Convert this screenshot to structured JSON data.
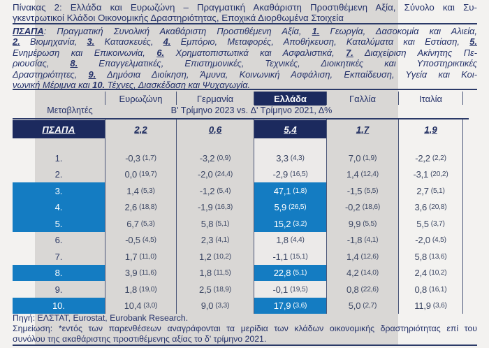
{
  "colors": {
    "page_bg": "#f3f2f0",
    "panel_gray": "#d9d7d5",
    "greece_column_light": "#eceae9",
    "navy": "#1c2a5e",
    "highlight_blue": "#147cc2",
    "rule_line": "#2b3a68",
    "text_navy": "#243169",
    "value_text": "#3b4663",
    "white": "#ffffff"
  },
  "title": {
    "lines": [
      "Πίνακας 2: Ελλάδα και Ευρωζώνη – Πραγματική Ακαθάριστη Προστιθέμενη Αξία, Σύνολο και Συ-",
      "γκεντρωτικοί Κλάδοι Οικονομικής Δραστηριότητας, Εποχικά Διορθωμένα Στοιχεία"
    ]
  },
  "description": {
    "lines": [
      [
        {
          "t": "ΠΣΑΠΑ",
          "m": true
        },
        {
          "t": ": Πραγματική Συνολική Ακαθάριστη Προστιθέμενη Αξία, ",
          "m": false
        },
        {
          "t": "1.",
          "m": true
        },
        {
          "t": " Γεωργία, Δασοκομία και Αλιεία,",
          "m": false
        }
      ],
      [
        {
          "t": "2.",
          "m": true
        },
        {
          "t": " Βιομηχανία, ",
          "m": false
        },
        {
          "t": "3.",
          "m": true
        },
        {
          "t": " Κατασκευές, ",
          "m": false
        },
        {
          "t": "4.",
          "m": true
        },
        {
          "t": " Εμπόριο, Μεταφορές, Αποθήκευση, Καταλύματα και Εστίαση, ",
          "m": false
        },
        {
          "t": "5.",
          "m": true
        }
      ],
      [
        {
          "t": "Ενημέρωση και Επικοινωνία, ",
          "m": false
        },
        {
          "t": "6.",
          "m": true
        },
        {
          "t": " Χρηματοπιστωτικά και Ασφαλιστικά, ",
          "m": false
        },
        {
          "t": "7.",
          "m": true
        },
        {
          "t": " Διαχείριση Ακίνητης Πε-",
          "m": false
        }
      ],
      [
        {
          "t": "ριουσίας, ",
          "m": false
        },
        {
          "t": "8.",
          "m": true
        },
        {
          "t": " Επαγγελματικές, Επιστημονικές, Τεχνικές, Διοικητικές και Υποστηρικτικές",
          "m": false
        }
      ],
      [
        {
          "t": "Δραστηριότητες, ",
          "m": false
        },
        {
          "t": "9.",
          "m": true
        },
        {
          "t": " Δημόσια Διοίκηση, Άμυνα, Κοινωνική Ασφάλιση, Εκπαίδευση, Υγεία και Κοι-",
          "m": false
        }
      ],
      [
        {
          "t": "νωνική Μέριμνα και ",
          "m": false
        },
        {
          "t": "10.",
          "m": true
        },
        {
          "t": " Τέχνες, Διασκέδαση και Ψυχαγωγία.",
          "m": false
        }
      ]
    ]
  },
  "table": {
    "variables_label": "Μεταβλητές",
    "period_label": "Β' Τρίμηνο 2023 vs. Δ' Τρίμηνο 2021, Δ%",
    "columns": [
      "Ευρωζώνη",
      "Γερμανία",
      "Ελλάδα",
      "Γαλλία",
      "Ιταλία"
    ],
    "highlight_column": "Ελλάδα",
    "psapa": {
      "label": "ΠΣΑΠΑ",
      "values": [
        "2,2",
        "0,6",
        "5,4",
        "1,7",
        "1,9"
      ]
    },
    "rows": [
      {
        "label": "1.",
        "highlighted": false,
        "values": [
          {
            "v": "-0,3",
            "share": "1,7"
          },
          {
            "v": "-3,2",
            "share": "0,9"
          },
          {
            "v": "3,3",
            "share": "4,3"
          },
          {
            "v": "7,0",
            "share": "1,9"
          },
          {
            "v": "-2,2",
            "share": "2,2"
          }
        ]
      },
      {
        "label": "2.",
        "highlighted": false,
        "values": [
          {
            "v": "0,0",
            "share": "19,7"
          },
          {
            "v": "-2,0",
            "share": "24,4"
          },
          {
            "v": "-2,9",
            "share": "16,5"
          },
          {
            "v": "1,4",
            "share": "12,4"
          },
          {
            "v": "-3,1",
            "share": "20,2"
          }
        ]
      },
      {
        "label": "3.",
        "highlighted": true,
        "values": [
          {
            "v": "1,4",
            "share": "5,3"
          },
          {
            "v": "-1,2",
            "share": "5,4"
          },
          {
            "v": "47,1",
            "share": "1,8"
          },
          {
            "v": "-1,5",
            "share": "5,5"
          },
          {
            "v": "2,7",
            "share": "5,1"
          }
        ]
      },
      {
        "label": "4.",
        "highlighted": true,
        "values": [
          {
            "v": "2,6",
            "share": "18,8"
          },
          {
            "v": "-1,9",
            "share": "16,3"
          },
          {
            "v": "5,9",
            "share": "26,5"
          },
          {
            "v": "-0,2",
            "share": "18,6"
          },
          {
            "v": "3,6",
            "share": "20,8"
          }
        ]
      },
      {
        "label": "5.",
        "highlighted": true,
        "values": [
          {
            "v": "6,7",
            "share": "5,3"
          },
          {
            "v": "5,8",
            "share": "5,1"
          },
          {
            "v": "15,2",
            "share": "3,2"
          },
          {
            "v": "9,9",
            "share": "5,5"
          },
          {
            "v": "5,5",
            "share": "3,7"
          }
        ]
      },
      {
        "label": "6.",
        "highlighted": false,
        "values": [
          {
            "v": "-0,5",
            "share": "4,5"
          },
          {
            "v": "2,3",
            "share": "4,1"
          },
          {
            "v": "1,8",
            "share": "4,4"
          },
          {
            "v": "-1,8",
            "share": "4,1"
          },
          {
            "v": "-2,0",
            "share": "4,5"
          }
        ]
      },
      {
        "label": "7.",
        "highlighted": false,
        "values": [
          {
            "v": "1,7",
            "share": "11,0"
          },
          {
            "v": "1,2",
            "share": "10,2"
          },
          {
            "v": "-1,1",
            "share": "15,1"
          },
          {
            "v": "1,4",
            "share": "12,6"
          },
          {
            "v": "5,8",
            "share": "13,6"
          }
        ]
      },
      {
        "label": "8.",
        "highlighted": true,
        "values": [
          {
            "v": "3,9",
            "share": "11,6"
          },
          {
            "v": "1,8",
            "share": "11,5"
          },
          {
            "v": "22,8",
            "share": "5,1"
          },
          {
            "v": "4,2",
            "share": "14,0"
          },
          {
            "v": "2,4",
            "share": "10,2"
          }
        ]
      },
      {
        "label": "9.",
        "highlighted": false,
        "values": [
          {
            "v": "1,8",
            "share": "19,0"
          },
          {
            "v": "2,5",
            "share": "18,9"
          },
          {
            "v": "-0,1",
            "share": "19,5"
          },
          {
            "v": "0,8",
            "share": "22,6"
          },
          {
            "v": "0,8",
            "share": "16,1"
          }
        ]
      },
      {
        "label": "10.",
        "highlighted": true,
        "values": [
          {
            "v": "10,4",
            "share": "3,0"
          },
          {
            "v": "9,0",
            "share": "3,3"
          },
          {
            "v": "17,9",
            "share": "3,6"
          },
          {
            "v": "5,0",
            "share": "2,7"
          },
          {
            "v": "11,9",
            "share": "3,6"
          }
        ]
      }
    ]
  },
  "footer": {
    "source": "Πηγή: ΕΛΣΤΑΤ, Eurostat, Eurobank Research.",
    "note_lines": [
      "Σημείωση: *εντός των παρενθέσεων αναγράφονται τα μερίδια των κλάδων οικονομικής δραστηριότητας επί του",
      "συνόλου της ακαθάριστης προστιθέμενης αξίας το δ' τρίμηνο 2021."
    ]
  }
}
